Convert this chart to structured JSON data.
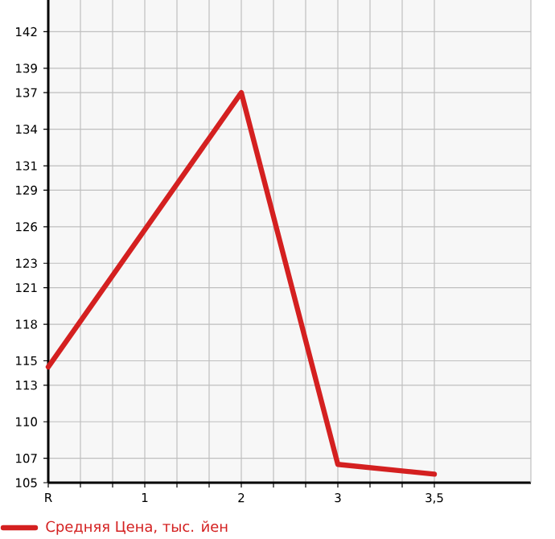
{
  "chart_data": {
    "type": "line",
    "categories": [
      "R",
      "1",
      "2",
      "3",
      "3,5"
    ],
    "series": [
      {
        "name": "Средняя Цена, тыс. йен",
        "color": "#d42020",
        "values": [
          114.5,
          null,
          137,
          106.5,
          105.7
        ]
      }
    ],
    "ylim": [
      105,
      144.6
    ],
    "yticks": [
      105,
      107,
      110,
      113,
      115,
      118,
      121,
      123,
      126,
      129,
      131,
      134,
      137,
      139,
      142
    ],
    "grid": true,
    "legend": "bottom",
    "marker": "none",
    "line_style": "solid"
  }
}
